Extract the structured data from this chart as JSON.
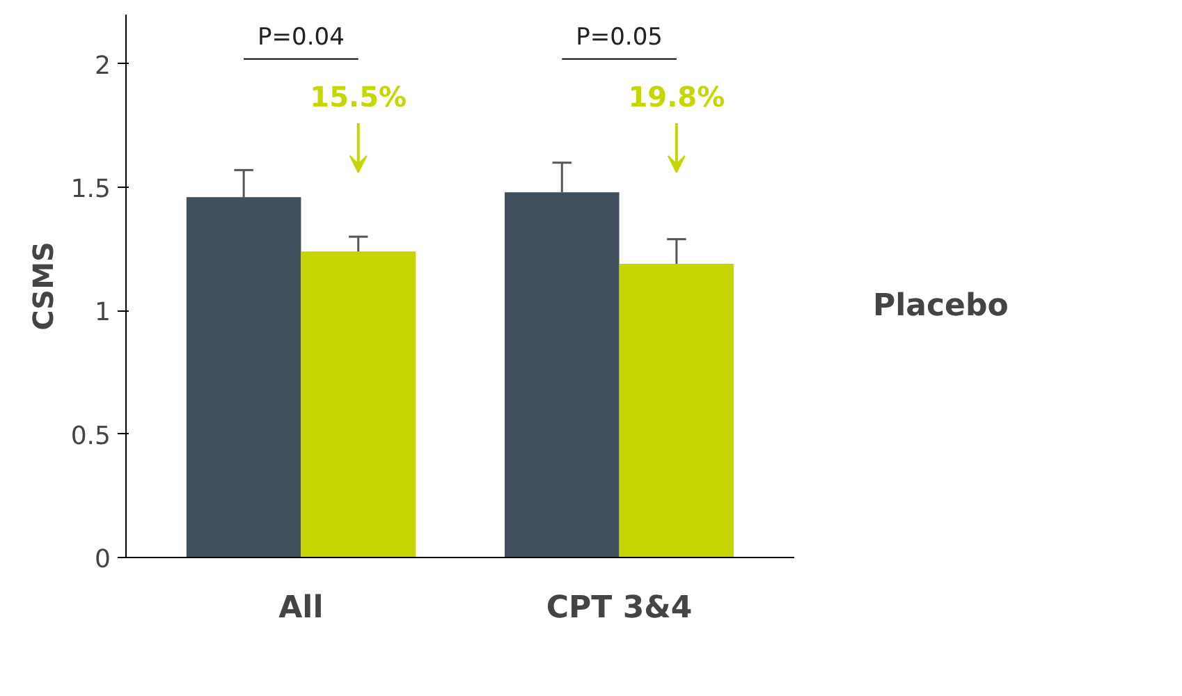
{
  "chart_data": {
    "type": "bar",
    "ylabel": "CSMS",
    "categories": [
      "All",
      "CPT 3&4"
    ],
    "series": [
      {
        "name": "Placebo",
        "color": "#424f5e",
        "values": [
          1.46,
          1.48
        ],
        "errors": [
          [
            1.46,
            1.57
          ],
          [
            1.48,
            1.6
          ]
        ]
      },
      {
        "color": "#c5d600",
        "values": [
          1.24,
          1.19
        ],
        "errors": [
          [
            1.24,
            1.3
          ],
          [
            1.19,
            1.29
          ]
        ]
      }
    ],
    "ylim": [
      0,
      2.2
    ],
    "yticks": [
      0,
      0.5,
      1,
      1.5,
      2
    ],
    "grid": false,
    "legend": "right",
    "annotations": [
      "P=0.04",
      "15.5%",
      "P=0.05",
      "19.8%"
    ]
  }
}
